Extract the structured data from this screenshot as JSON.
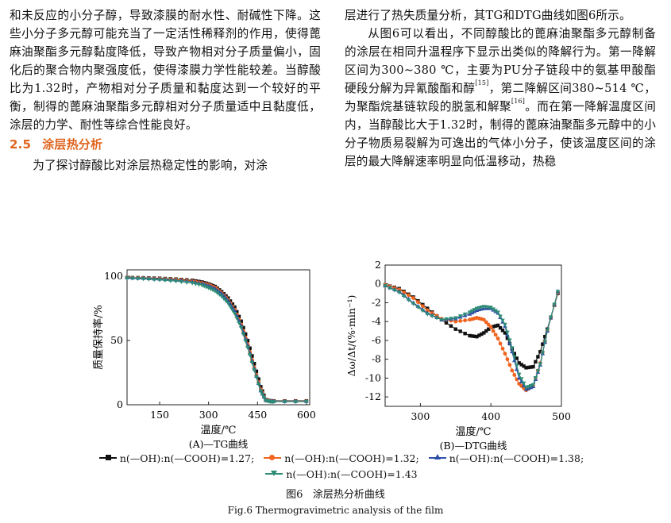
{
  "left_column": {
    "para1": "和未反应的小分子醇，导致漆膜的耐水性、耐碱性下降。这些小分子多元醇可能充当了一定活性稀释剂的作用，使得蓖麻油聚酯多元醇黏度降低，导致产物相对分子质量偏小，固化后的聚合物内聚强度低，使得漆膜力学性能较差。当醇酸比为1.32时，产物相对分子质量和黏度达到一个较好的平衡，制得的蓖麻油聚酯多元醇相对分子质量适中且黏度低，涂层的力学、耐性等综合性能良好。",
    "section_number": "2.5",
    "section_title": "涂层热分析",
    "para2": "为了探讨醇酸比对涂层热稳定性的影响，对涂"
  },
  "right_column": {
    "para1": "层进行了热失质量分析，其TG和DTG曲线如图6所示。",
    "para2_a": "从图6可以看出，不同醇酸比的蓖麻油聚酯多元醇制备的涂层在相同升温程序下显示出类似的降解行为。第一降解区间为300~380 ℃，主要为PU分子链段中的氨基甲酸酯硬段分解为异氰酸酯和醇",
    "ref1": "[15]",
    "para2_b": "，第二降解区间380~514 ℃，为聚酯烷基链软段的脱氢和解聚",
    "ref2": "[16]",
    "para2_c": "。而在第一降解温度区间内，当醇酸比大于1.32时，制得的蓖麻油聚酯多元醇中的小分子物质易裂解为可逸出的气体小分子，使该温度区间的涂层的最大降解速率明显向低温移动，热稳"
  },
  "figure": {
    "number": "图6",
    "caption_cn": "涂层热分析曲线",
    "caption_en": "Fig.6   Thermogravimetric analysis of the film",
    "legend": [
      {
        "label": "n(—OH):n(—COOH)=1.27;",
        "color": "#111111",
        "marker": "square"
      },
      {
        "label": "n(—OH):n(—COOH)=1.32;",
        "color": "#f0641e",
        "marker": "circle"
      },
      {
        "label": "n(—OH):n(—COOH)=1.38;",
        "color": "#2d4fa8",
        "marker": "triangle-up"
      },
      {
        "label": "n(—OH):n(—COOH)=1.43",
        "color": "#2e8b76",
        "marker": "triangle-down"
      }
    ]
  },
  "chart_data": [
    {
      "type": "line",
      "subtitle": "(A)—TG曲线",
      "xlabel": "温度/℃",
      "ylabel": "质量保持率/%",
      "xlim": [
        50,
        610
      ],
      "ylim": [
        0,
        105
      ],
      "xticks": [
        150,
        300,
        450,
        600
      ],
      "yticks": [
        0,
        50,
        100
      ],
      "x": [
        50,
        100,
        150,
        200,
        250,
        280,
        300,
        320,
        340,
        360,
        380,
        400,
        420,
        440,
        460,
        475,
        490,
        500,
        600
      ],
      "series": [
        {
          "name": "n(—OH):n(—COOH)=1.27",
          "values": [
            99,
            98.8,
            98.4,
            97.8,
            96.8,
            95.5,
            94,
            92,
            88,
            83,
            76,
            65,
            50,
            32,
            14,
            4,
            3,
            3,
            3
          ]
        },
        {
          "name": "n(—OH):n(—COOH)=1.32",
          "values": [
            99,
            98.6,
            98.1,
            97.4,
            96.2,
            94.8,
            93.3,
            91.2,
            87,
            81.5,
            74,
            62.5,
            47,
            29,
            12,
            3.8,
            2.8,
            2.8,
            2.8
          ]
        },
        {
          "name": "n(—OH):n(—COOH)=1.38",
          "values": [
            98.8,
            98.4,
            97.8,
            97,
            95.7,
            94.3,
            92.5,
            90.3,
            86.5,
            81,
            73,
            61.5,
            46,
            28,
            11,
            3.5,
            2.6,
            2.6,
            2.6
          ]
        },
        {
          "name": "n(—OH):n(—COOH)=1.43",
          "values": [
            98.6,
            98,
            97.2,
            96.2,
            94.7,
            93,
            91,
            88.5,
            84.5,
            79,
            71,
            60,
            44.5,
            27,
            10.5,
            3.3,
            2.4,
            2.4,
            2.4
          ]
        }
      ]
    },
    {
      "type": "line",
      "subtitle": "(B)—DTG曲线",
      "xlabel": "温度/℃",
      "ylabel": "Δω/Δt/(%·min⁻¹)",
      "xlim": [
        250,
        500
      ],
      "ylim": [
        -13,
        2
      ],
      "xticks": [
        300,
        400,
        500
      ],
      "yticks": [
        2,
        0,
        -2,
        -4,
        -6,
        -8,
        -10,
        -12
      ],
      "x": [
        250,
        270,
        290,
        310,
        330,
        350,
        370,
        380,
        390,
        400,
        410,
        420,
        430,
        440,
        450,
        460,
        470,
        480,
        495
      ],
      "series": [
        {
          "name": "n(—OH):n(—COOH)=1.27",
          "values": [
            -0.1,
            -0.5,
            -1.4,
            -2.6,
            -3.8,
            -4.8,
            -5.5,
            -5.6,
            -5.2,
            -4.6,
            -4.4,
            -5.2,
            -6.9,
            -8.4,
            -8.9,
            -8.8,
            -7.2,
            -4.8,
            -1.0
          ]
        },
        {
          "name": "n(—OH):n(—COOH)=1.32",
          "values": [
            -0.1,
            -0.6,
            -1.5,
            -2.8,
            -3.7,
            -4.0,
            -3.8,
            -3.6,
            -3.8,
            -4.6,
            -5.8,
            -7.4,
            -9.2,
            -10.6,
            -11.3,
            -10.8,
            -8.4,
            -5.0,
            -0.9
          ]
        },
        {
          "name": "n(—OH):n(—COOH)=1.38",
          "values": [
            -0.2,
            -0.8,
            -2.0,
            -3.1,
            -3.8,
            -3.7,
            -3.2,
            -2.8,
            -2.6,
            -2.6,
            -3.1,
            -4.5,
            -7.2,
            -10.0,
            -11.2,
            -10.9,
            -8.6,
            -5.0,
            -0.8
          ]
        },
        {
          "name": "n(—OH):n(—COOH)=1.43",
          "values": [
            -0.2,
            -0.9,
            -2.1,
            -3.2,
            -3.8,
            -3.6,
            -3.0,
            -2.6,
            -2.4,
            -2.5,
            -3.0,
            -4.3,
            -6.8,
            -9.6,
            -11.0,
            -10.7,
            -8.5,
            -4.9,
            -0.8
          ]
        }
      ]
    }
  ]
}
